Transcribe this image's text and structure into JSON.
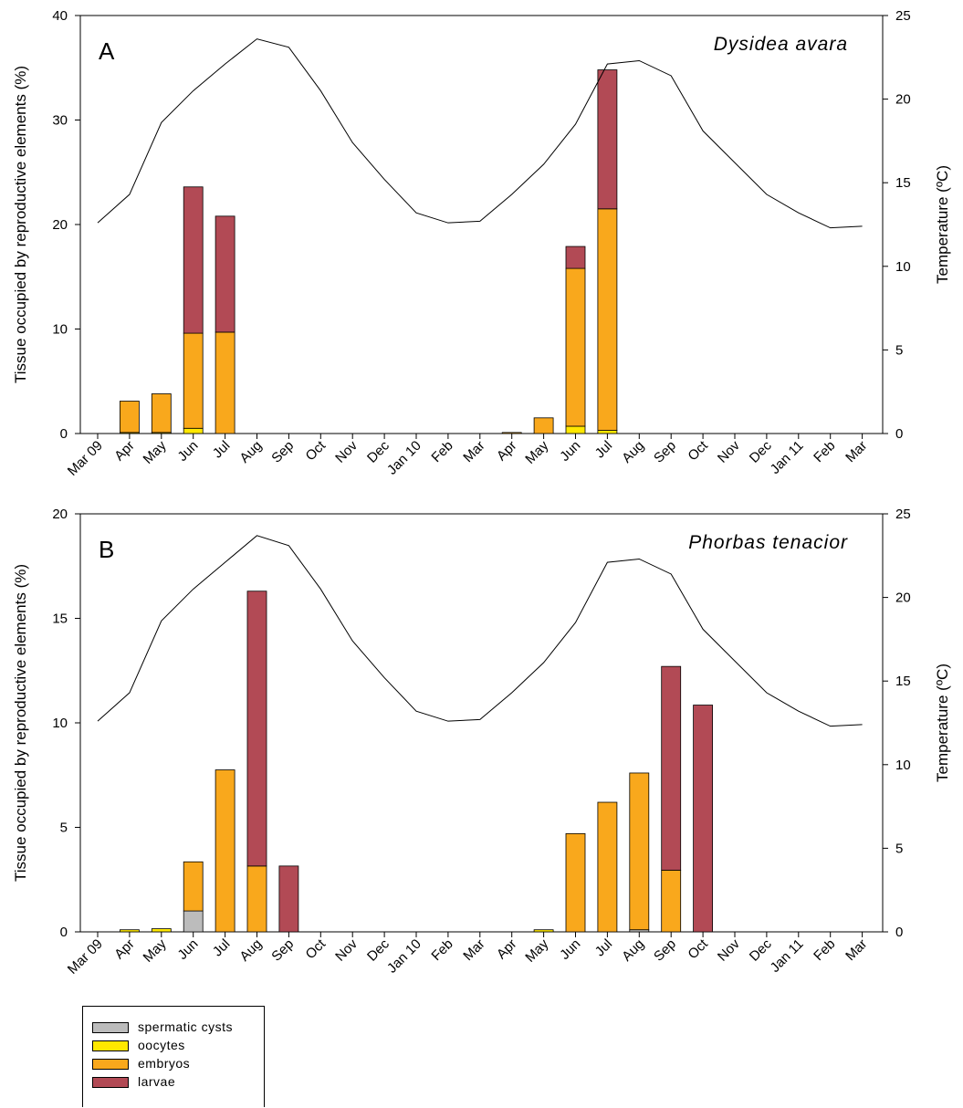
{
  "chart_data": [
    {
      "type": "bar",
      "panel_label": "A",
      "species": "Dysidea avara",
      "ylabel": "Tissue occupied by reproductive elements (%)",
      "ylabel_right": "Temperature (ºC)",
      "ylim": [
        0,
        40
      ],
      "yticks": [
        "0",
        "10",
        "20",
        "30",
        "40"
      ],
      "ylim_right": [
        0,
        25
      ],
      "yticks_right": [
        "0",
        "5",
        "10",
        "15",
        "20",
        "25"
      ],
      "categories": [
        "Mar 09",
        "Apr",
        "May",
        "Jun",
        "Jul",
        "Aug",
        "Sep",
        "Oct",
        "Nov",
        "Dec",
        "Jan 10",
        "Feb",
        "Mar",
        "Apr",
        "May",
        "Jun",
        "Jul",
        "Aug",
        "Sep",
        "Oct",
        "Nov",
        "Dec",
        "Jan 11",
        "Feb",
        "Mar"
      ],
      "series": [
        {
          "name": "spermatic cysts",
          "values": [
            0,
            0,
            0,
            0,
            0,
            0,
            0,
            0,
            0,
            0,
            0,
            0,
            0,
            0,
            0,
            0,
            0,
            0,
            0,
            0,
            0,
            0,
            0,
            0,
            0
          ]
        },
        {
          "name": "oocytes",
          "values": [
            0,
            0.1,
            0.1,
            0.5,
            0,
            0,
            0,
            0,
            0,
            0,
            0,
            0,
            0,
            0,
            0,
            0.7,
            0.3,
            0,
            0,
            0,
            0,
            0,
            0,
            0,
            0
          ]
        },
        {
          "name": "embryos",
          "values": [
            0,
            3.0,
            3.7,
            9.1,
            9.7,
            0,
            0,
            0,
            0,
            0,
            0,
            0,
            0,
            0.1,
            1.5,
            15.1,
            21.2,
            0,
            0,
            0,
            0,
            0,
            0,
            0,
            0
          ]
        },
        {
          "name": "larvae",
          "values": [
            0,
            0,
            0,
            14.0,
            11.1,
            0,
            0,
            0,
            0,
            0,
            0,
            0,
            0,
            0,
            0,
            2.1,
            13.3,
            0,
            0,
            0,
            0,
            0,
            0,
            0,
            0
          ]
        }
      ],
      "temperature": [
        12.6,
        14.3,
        18.6,
        20.5,
        22.1,
        23.6,
        23.1,
        20.5,
        17.4,
        15.2,
        13.2,
        12.6,
        12.7,
        14.3,
        16.1,
        18.5,
        22.1,
        22.3,
        21.4,
        18.1,
        16.2,
        14.3,
        13.2,
        12.3,
        12.4
      ]
    },
    {
      "type": "bar",
      "panel_label": "B",
      "species": "Phorbas tenacior",
      "ylabel": "Tissue occupied by reproductive elements (%)",
      "ylabel_right": "Temperature (ºC)",
      "ylim": [
        0,
        20
      ],
      "yticks": [
        "0",
        "5",
        "10",
        "15",
        "20"
      ],
      "ylim_right": [
        0,
        25
      ],
      "yticks_right": [
        "0",
        "5",
        "10",
        "15",
        "20",
        "25"
      ],
      "categories": [
        "Mar 09",
        "Apr",
        "May",
        "Jun",
        "Jul",
        "Aug",
        "Sep",
        "Oct",
        "Nov",
        "Dec",
        "Jan 10",
        "Feb",
        "Mar",
        "Apr",
        "May",
        "Jun",
        "Jul",
        "Aug",
        "Sep",
        "Oct",
        "Nov",
        "Dec",
        "Jan 11",
        "Feb",
        "Mar"
      ],
      "series": [
        {
          "name": "spermatic cysts",
          "values": [
            0,
            0,
            0,
            1.0,
            0,
            0,
            0,
            0,
            0,
            0,
            0,
            0,
            0,
            0,
            0,
            0,
            0,
            0.1,
            0,
            0,
            0,
            0,
            0,
            0,
            0
          ]
        },
        {
          "name": "oocytes",
          "values": [
            0,
            0.1,
            0.15,
            0,
            0,
            0,
            0,
            0,
            0,
            0,
            0,
            0,
            0,
            0,
            0.1,
            0,
            0,
            0,
            0,
            0,
            0,
            0,
            0,
            0,
            0
          ]
        },
        {
          "name": "embryos",
          "values": [
            0,
            0,
            0,
            2.35,
            7.75,
            3.15,
            0,
            0,
            0,
            0,
            0,
            0,
            0,
            0,
            0,
            4.7,
            6.2,
            7.5,
            2.95,
            0,
            0,
            0,
            0,
            0,
            0
          ]
        },
        {
          "name": "larvae",
          "values": [
            0,
            0,
            0,
            0,
            0,
            13.15,
            3.15,
            0,
            0,
            0,
            0,
            0,
            0,
            0,
            0,
            0,
            0,
            0,
            9.75,
            10.85,
            0,
            0,
            0,
            0,
            0
          ]
        }
      ],
      "temperature": [
        12.6,
        14.3,
        18.6,
        20.5,
        22.1,
        23.7,
        23.1,
        20.5,
        17.4,
        15.2,
        13.2,
        12.6,
        12.7,
        14.3,
        16.1,
        18.5,
        22.1,
        22.3,
        21.4,
        18.1,
        16.2,
        14.3,
        13.2,
        12.3,
        12.4
      ]
    }
  ],
  "legend": {
    "items": [
      {
        "label": "spermatic cysts",
        "color": "#bcbcbc"
      },
      {
        "label": "oocytes",
        "color": "#ffe800"
      },
      {
        "label": "embryos",
        "color": "#f9a81c"
      },
      {
        "label": "larvae",
        "color": "#b24a55"
      }
    ]
  }
}
